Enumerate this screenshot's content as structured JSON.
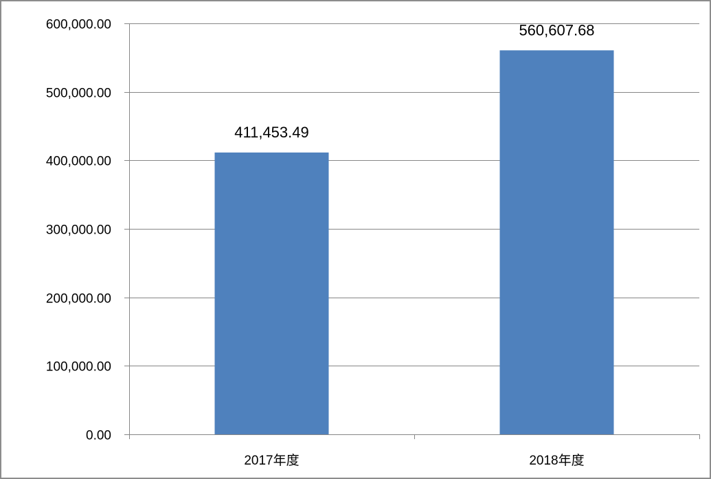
{
  "chart_data": {
    "type": "bar",
    "categories": [
      "2017年度",
      "2018年度"
    ],
    "values": [
      411453.49,
      560607.68
    ],
    "value_labels": [
      "411,453.49",
      "560,607.68"
    ],
    "title": "",
    "xlabel": "",
    "ylabel": "",
    "ylim": [
      0,
      600000
    ],
    "yticks": [
      0,
      100000,
      200000,
      300000,
      400000,
      500000,
      600000
    ],
    "ytick_labels": [
      "0.00",
      "100,000.00",
      "200,000.00",
      "300,000.00",
      "400,000.00",
      "500,000.00",
      "600,000.00"
    ],
    "grid": true,
    "legend": "none",
    "bar_color": "#4F81BD",
    "gridline_color": "#868686"
  }
}
